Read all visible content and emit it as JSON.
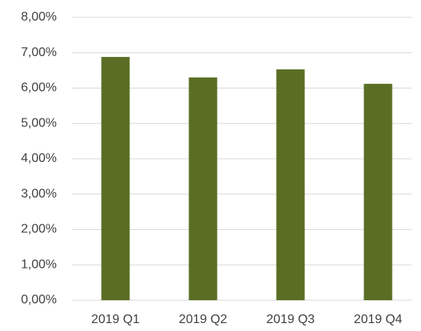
{
  "chart_data": {
    "type": "bar",
    "categories": [
      "2019 Q1",
      "2019 Q2",
      "2019 Q3",
      "2019 Q4"
    ],
    "values": [
      6.88,
      6.3,
      6.53,
      6.12
    ],
    "color": "#5a6e23",
    "ylim": [
      0,
      8
    ],
    "yticks": [
      {
        "value": 0,
        "label": "0,00%"
      },
      {
        "value": 1,
        "label": "1,00%"
      },
      {
        "value": 2,
        "label": "2,00%"
      },
      {
        "value": 3,
        "label": "3,00%"
      },
      {
        "value": 4,
        "label": "4,00%"
      },
      {
        "value": 5,
        "label": "5,00%"
      },
      {
        "value": 6,
        "label": "6,00%"
      },
      {
        "value": 7,
        "label": "7,00%"
      },
      {
        "value": 8,
        "label": "8,00%"
      }
    ],
    "grid": true
  }
}
